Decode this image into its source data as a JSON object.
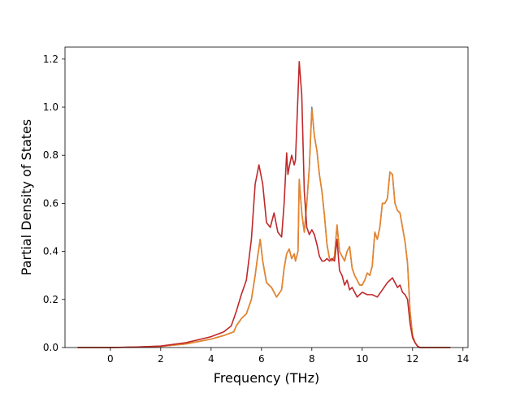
{
  "chart_data": {
    "type": "line",
    "title": "",
    "xlabel": "Frequency (THz)",
    "ylabel": "Partial Density of States",
    "xlim": [
      -1.8,
      14.2
    ],
    "ylim": [
      0.0,
      1.25
    ],
    "x_ticks": [
      0,
      2,
      4,
      6,
      8,
      10,
      12,
      14
    ],
    "y_ticks": [
      0.0,
      0.2,
      0.4,
      0.6,
      0.8,
      1.0,
      1.2
    ],
    "x_tick_labels": [
      "0",
      "2",
      "4",
      "6",
      "8",
      "10",
      "12",
      "14"
    ],
    "y_tick_labels": [
      "0.0",
      "0.2",
      "0.4",
      "0.6",
      "0.8",
      "1.0",
      "1.2"
    ],
    "grid": false,
    "legend": false,
    "series": [
      {
        "color": "#7f7f7f",
        "x": [
          -1.3,
          0.0,
          1.0,
          2.0,
          3.0,
          4.0,
          4.5,
          4.9,
          5.0,
          5.2,
          5.4,
          5.6,
          5.75,
          5.85,
          5.95,
          6.05,
          6.2,
          6.4,
          6.6,
          6.8,
          6.9,
          7.0,
          7.1,
          7.2,
          7.3,
          7.35,
          7.45,
          7.5,
          7.6,
          7.7,
          7.8,
          7.9,
          8.0,
          8.1,
          8.2,
          8.3,
          8.4,
          8.5,
          8.6,
          8.7,
          8.8,
          8.9,
          9.0,
          9.1,
          9.2,
          9.3,
          9.4,
          9.5,
          9.6,
          9.7,
          9.8,
          9.9,
          10.0,
          10.1,
          10.2,
          10.3,
          10.4,
          10.5,
          10.6,
          10.7,
          10.8,
          10.9,
          11.0,
          11.1,
          11.2,
          11.3,
          11.4,
          11.5,
          11.6,
          11.7,
          11.8,
          11.9,
          12.0,
          12.1,
          12.2,
          12.3,
          12.5,
          13.5
        ],
        "values": [
          0.0,
          0.0,
          0.002,
          0.005,
          0.015,
          0.035,
          0.05,
          0.065,
          0.09,
          0.12,
          0.14,
          0.2,
          0.3,
          0.38,
          0.45,
          0.36,
          0.27,
          0.25,
          0.21,
          0.24,
          0.33,
          0.39,
          0.41,
          0.37,
          0.39,
          0.36,
          0.4,
          0.7,
          0.56,
          0.48,
          0.6,
          0.75,
          1.0,
          0.88,
          0.82,
          0.72,
          0.65,
          0.55,
          0.43,
          0.37,
          0.36,
          0.38,
          0.51,
          0.4,
          0.38,
          0.36,
          0.4,
          0.42,
          0.33,
          0.3,
          0.28,
          0.26,
          0.26,
          0.28,
          0.31,
          0.3,
          0.34,
          0.48,
          0.45,
          0.5,
          0.6,
          0.6,
          0.62,
          0.73,
          0.72,
          0.6,
          0.57,
          0.56,
          0.5,
          0.44,
          0.35,
          0.15,
          0.05,
          0.02,
          0.005,
          0.0,
          0.0,
          0.0
        ]
      },
      {
        "color": "#e8842a",
        "x": [
          -1.3,
          0.0,
          1.0,
          2.0,
          3.0,
          4.0,
          4.5,
          4.9,
          5.0,
          5.2,
          5.4,
          5.6,
          5.75,
          5.85,
          5.95,
          6.05,
          6.2,
          6.4,
          6.6,
          6.8,
          6.9,
          7.0,
          7.1,
          7.2,
          7.3,
          7.35,
          7.45,
          7.5,
          7.6,
          7.7,
          7.8,
          7.9,
          8.0,
          8.1,
          8.2,
          8.3,
          8.4,
          8.5,
          8.6,
          8.7,
          8.8,
          8.9,
          9.0,
          9.1,
          9.2,
          9.3,
          9.4,
          9.5,
          9.6,
          9.7,
          9.8,
          9.9,
          10.0,
          10.1,
          10.2,
          10.3,
          10.4,
          10.5,
          10.6,
          10.7,
          10.8,
          10.9,
          11.0,
          11.1,
          11.2,
          11.3,
          11.4,
          11.5,
          11.6,
          11.7,
          11.8,
          11.9,
          12.0,
          12.1,
          12.2,
          12.3,
          12.5,
          13.5
        ],
        "values": [
          0.0,
          0.0,
          0.002,
          0.005,
          0.015,
          0.035,
          0.05,
          0.065,
          0.09,
          0.12,
          0.14,
          0.2,
          0.3,
          0.38,
          0.45,
          0.36,
          0.27,
          0.25,
          0.21,
          0.24,
          0.33,
          0.39,
          0.41,
          0.37,
          0.39,
          0.36,
          0.4,
          0.7,
          0.56,
          0.48,
          0.6,
          0.75,
          0.99,
          0.88,
          0.82,
          0.72,
          0.65,
          0.55,
          0.43,
          0.37,
          0.36,
          0.38,
          0.51,
          0.4,
          0.38,
          0.36,
          0.4,
          0.42,
          0.33,
          0.3,
          0.28,
          0.26,
          0.26,
          0.28,
          0.31,
          0.3,
          0.34,
          0.48,
          0.45,
          0.5,
          0.6,
          0.6,
          0.62,
          0.73,
          0.72,
          0.6,
          0.57,
          0.56,
          0.5,
          0.44,
          0.35,
          0.15,
          0.05,
          0.02,
          0.005,
          0.0,
          0.0,
          0.0
        ]
      },
      {
        "color": "#c0282a",
        "x": [
          -1.3,
          0.0,
          1.0,
          2.0,
          3.0,
          4.0,
          4.5,
          4.8,
          5.0,
          5.2,
          5.4,
          5.6,
          5.75,
          5.9,
          6.05,
          6.2,
          6.35,
          6.5,
          6.65,
          6.8,
          6.9,
          7.0,
          7.05,
          7.1,
          7.2,
          7.3,
          7.35,
          7.45,
          7.5,
          7.6,
          7.7,
          7.8,
          7.9,
          8.0,
          8.1,
          8.2,
          8.3,
          8.4,
          8.5,
          8.6,
          8.7,
          8.8,
          8.9,
          9.0,
          9.1,
          9.2,
          9.3,
          9.4,
          9.5,
          9.6,
          9.7,
          9.8,
          9.9,
          10.0,
          10.2,
          10.4,
          10.6,
          10.8,
          11.0,
          11.1,
          11.2,
          11.3,
          11.4,
          11.5,
          11.6,
          11.7,
          11.8,
          11.9,
          12.0,
          12.1,
          12.2,
          12.3,
          12.5,
          13.5
        ],
        "values": [
          0.0,
          0.0,
          0.002,
          0.006,
          0.02,
          0.045,
          0.065,
          0.09,
          0.15,
          0.22,
          0.28,
          0.45,
          0.68,
          0.76,
          0.68,
          0.52,
          0.5,
          0.56,
          0.48,
          0.46,
          0.6,
          0.81,
          0.72,
          0.75,
          0.8,
          0.76,
          0.78,
          1.05,
          1.19,
          1.05,
          0.65,
          0.5,
          0.47,
          0.49,
          0.47,
          0.43,
          0.38,
          0.36,
          0.36,
          0.37,
          0.36,
          0.37,
          0.36,
          0.45,
          0.32,
          0.3,
          0.26,
          0.28,
          0.24,
          0.25,
          0.23,
          0.21,
          0.22,
          0.23,
          0.22,
          0.22,
          0.21,
          0.24,
          0.27,
          0.28,
          0.29,
          0.27,
          0.25,
          0.26,
          0.23,
          0.22,
          0.2,
          0.1,
          0.04,
          0.02,
          0.005,
          0.0,
          0.0,
          0.0
        ]
      }
    ]
  }
}
